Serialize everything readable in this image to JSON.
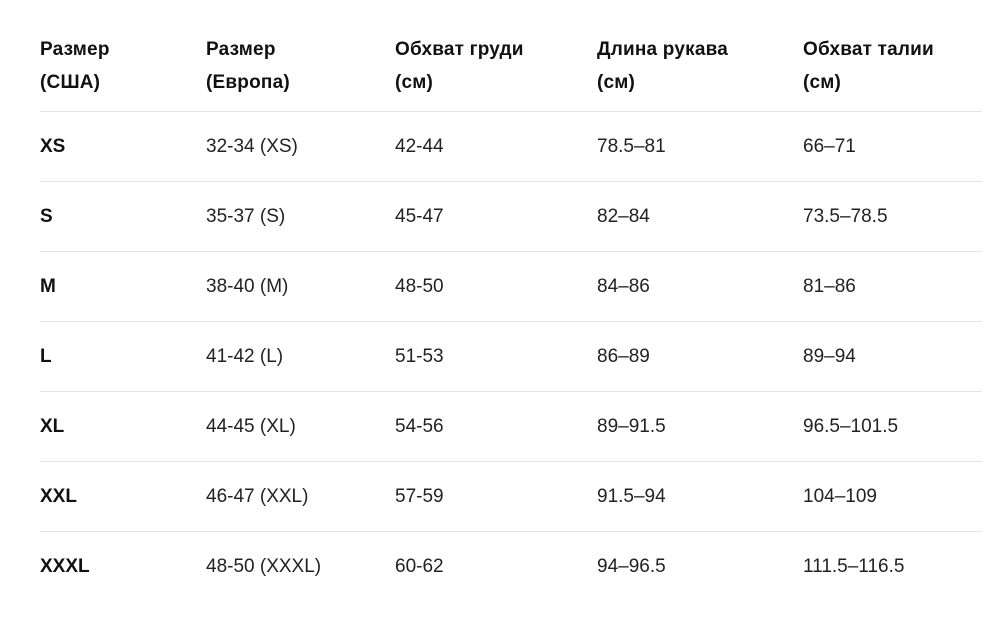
{
  "table": {
    "headers": [
      "Размер\n(США)",
      "Размер\n(Европа)",
      "Обхват груди\n(см)",
      "Длина рукава\n(см)",
      "Обхват талии\n(см)"
    ],
    "rows": [
      [
        "XS",
        "32-34 (XS)",
        "42-44",
        "78.5–81",
        "66–71"
      ],
      [
        "S",
        "35-37 (S)",
        "45-47",
        "82–84",
        "73.5–78.5"
      ],
      [
        "M",
        "38-40 (M)",
        "48-50",
        "84–86",
        "81–86"
      ],
      [
        "L",
        "41-42 (L)",
        "51-53",
        "86–89",
        "89–94"
      ],
      [
        "XL",
        "44-45 (XL)",
        "54-56",
        "89–91.5",
        "96.5–101.5"
      ],
      [
        "XXL",
        "46-47 (XXL)",
        "57-59",
        "91.5–94",
        "104–109"
      ],
      [
        "XXXL",
        "48-50 (XXXL)",
        "60-62",
        "94–96.5",
        "111.5–116.5"
      ]
    ]
  }
}
